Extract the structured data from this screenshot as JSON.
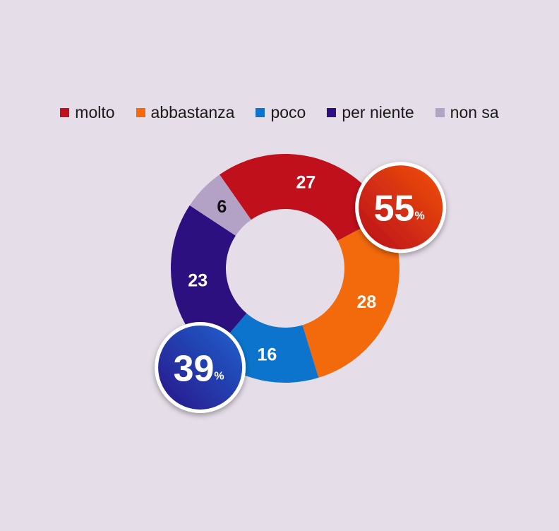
{
  "chart_data": {
    "type": "pie",
    "variant": "donut",
    "categories": [
      "molto",
      "abbastanza",
      "poco",
      "per niente",
      "non sa"
    ],
    "values": [
      27,
      28,
      16,
      23,
      6
    ],
    "colors": [
      "#c0101c",
      "#f26a0c",
      "#0c74cc",
      "#2c1080",
      "#b4a2c6"
    ],
    "label_colors": [
      "#ffffff",
      "#ffffff",
      "#ffffff",
      "#ffffff",
      "#111111"
    ],
    "legend_position": "top",
    "totals": [
      {
        "value": "55",
        "unit": "%",
        "covers": [
          "molto",
          "abbastanza"
        ],
        "color_from": "#f2520e",
        "color_to": "#b80d16"
      },
      {
        "value": "39",
        "unit": "%",
        "covers": [
          "poco",
          "per niente"
        ],
        "color_from": "#1f64cf",
        "color_to": "#2a1388"
      }
    ]
  }
}
